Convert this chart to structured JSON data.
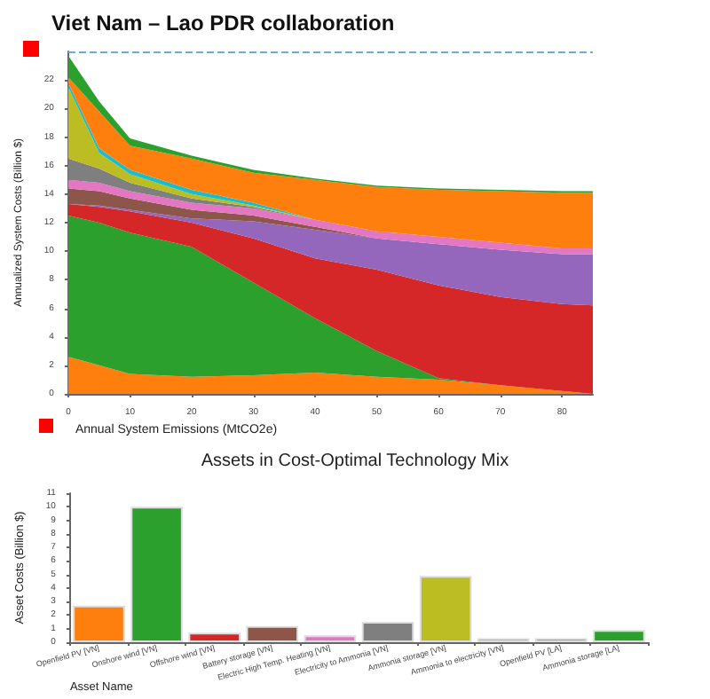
{
  "chart_data": [
    {
      "type": "area",
      "title": "Viet Nam – Lao PDR collaboration",
      "xlabel": "Annual System Emissions (MtCO2e)",
      "ylabel": "Annualized System Costs (Billion $)",
      "stacked": true,
      "x": [
        0,
        5,
        10,
        20,
        30,
        40,
        50,
        60,
        70,
        80,
        85
      ],
      "xlim": [
        0,
        85
      ],
      "xticks": [
        0,
        10,
        20,
        30,
        40,
        50,
        60,
        70,
        80
      ],
      "ylim": [
        0,
        24
      ],
      "yticks": [
        0,
        2,
        4,
        6,
        8,
        10,
        12,
        14,
        16,
        18,
        20,
        22
      ],
      "grid": false,
      "ref_lines": [
        {
          "axis": "y",
          "value": 24,
          "label": null,
          "color": "#6fa8dc",
          "line_style": "dashed"
        }
      ],
      "series": [
        {
          "color": "#ff7f0e",
          "values": [
            2.6,
            2.0,
            1.4,
            1.2,
            1.3,
            1.5,
            1.2,
            1.0,
            0.6,
            0.2,
            0
          ]
        },
        {
          "color": "#2ca02c",
          "values": [
            9.9,
            10.0,
            9.9,
            9.1,
            6.5,
            3.8,
            1.8,
            0.1,
            0,
            null,
            null
          ]
        },
        {
          "color": "#d62728",
          "values": [
            0.8,
            1.1,
            1.5,
            1.7,
            3.1,
            4.2,
            5.7,
            6.5,
            6.2,
            6.1,
            6.2
          ]
        },
        {
          "color": "#9467bd",
          "values": [
            0,
            0.1,
            0.1,
            0.3,
            1.2,
            2.0,
            2.2,
            2.9,
            3.3,
            3.5,
            3.6
          ]
        },
        {
          "color": "#8c564b",
          "values": [
            1.1,
            1.0,
            0.8,
            0.6,
            0.4,
            0.2,
            0,
            null,
            null,
            null,
            null
          ]
        },
        {
          "color": "#e377c2",
          "values": [
            0.6,
            0.6,
            0.5,
            0.5,
            0.5,
            0.5,
            0.5,
            0.5,
            0.5,
            0.4,
            0.4
          ]
        },
        {
          "color": "#7f7f7f",
          "values": [
            1.5,
            1.0,
            0.6,
            0.3,
            0.1,
            0,
            null,
            null,
            null,
            null,
            null
          ]
        },
        {
          "color": "#bcbd22",
          "values": [
            5.0,
            1.1,
            0.6,
            0.3,
            0.1,
            0,
            null,
            null,
            null,
            null,
            null
          ]
        },
        {
          "color": "#17becf",
          "values": [
            0.3,
            0.3,
            0.3,
            0.3,
            0.2,
            0,
            null,
            null,
            null,
            null,
            null
          ]
        },
        {
          "color": "#ff7f0e",
          "values": [
            0.4,
            2.6,
            1.7,
            2.2,
            2.1,
            2.8,
            3.1,
            3.3,
            3.6,
            3.9,
            3.9
          ]
        },
        {
          "color": "#2ca02c",
          "values": [
            1.5,
            0.7,
            0.5,
            0.2,
            0.2,
            0.1,
            0.1,
            0.1,
            0.1,
            0.1,
            0.1
          ]
        }
      ]
    },
    {
      "type": "bar",
      "title": "Assets in Cost-Optimal Technology Mix",
      "xlabel": "Asset Name",
      "ylabel": "Asset Costs (Billion $)",
      "categories": [
        "Openfield PV [VN]",
        "Onshore wind [VN]",
        "Offshore wind [VN]",
        "Battery storage [VN]",
        "Electric High Temp. Heating [VN]",
        "Electricity to Ammonia [VN]",
        "Ammonia storage [VN]",
        "Ammonia to electricity [VN]",
        "Openfield PV [LA]",
        "Ammonia storage [LA]"
      ],
      "values": [
        2.7,
        10.0,
        0.7,
        1.2,
        0.5,
        1.5,
        4.9,
        0.3,
        0.3,
        0.9
      ],
      "colors": [
        "#ff7f0e",
        "#2ca02c",
        "#d62728",
        "#8c564b",
        "#e377c2",
        "#7f7f7f",
        "#bcbd22",
        "#17becf",
        "#8c564b",
        "#2ca02c"
      ],
      "ylim": [
        0,
        11
      ],
      "yticks": [
        0,
        1,
        2,
        3,
        4,
        5,
        6,
        7,
        8,
        9,
        10,
        11
      ],
      "grid": false
    }
  ]
}
